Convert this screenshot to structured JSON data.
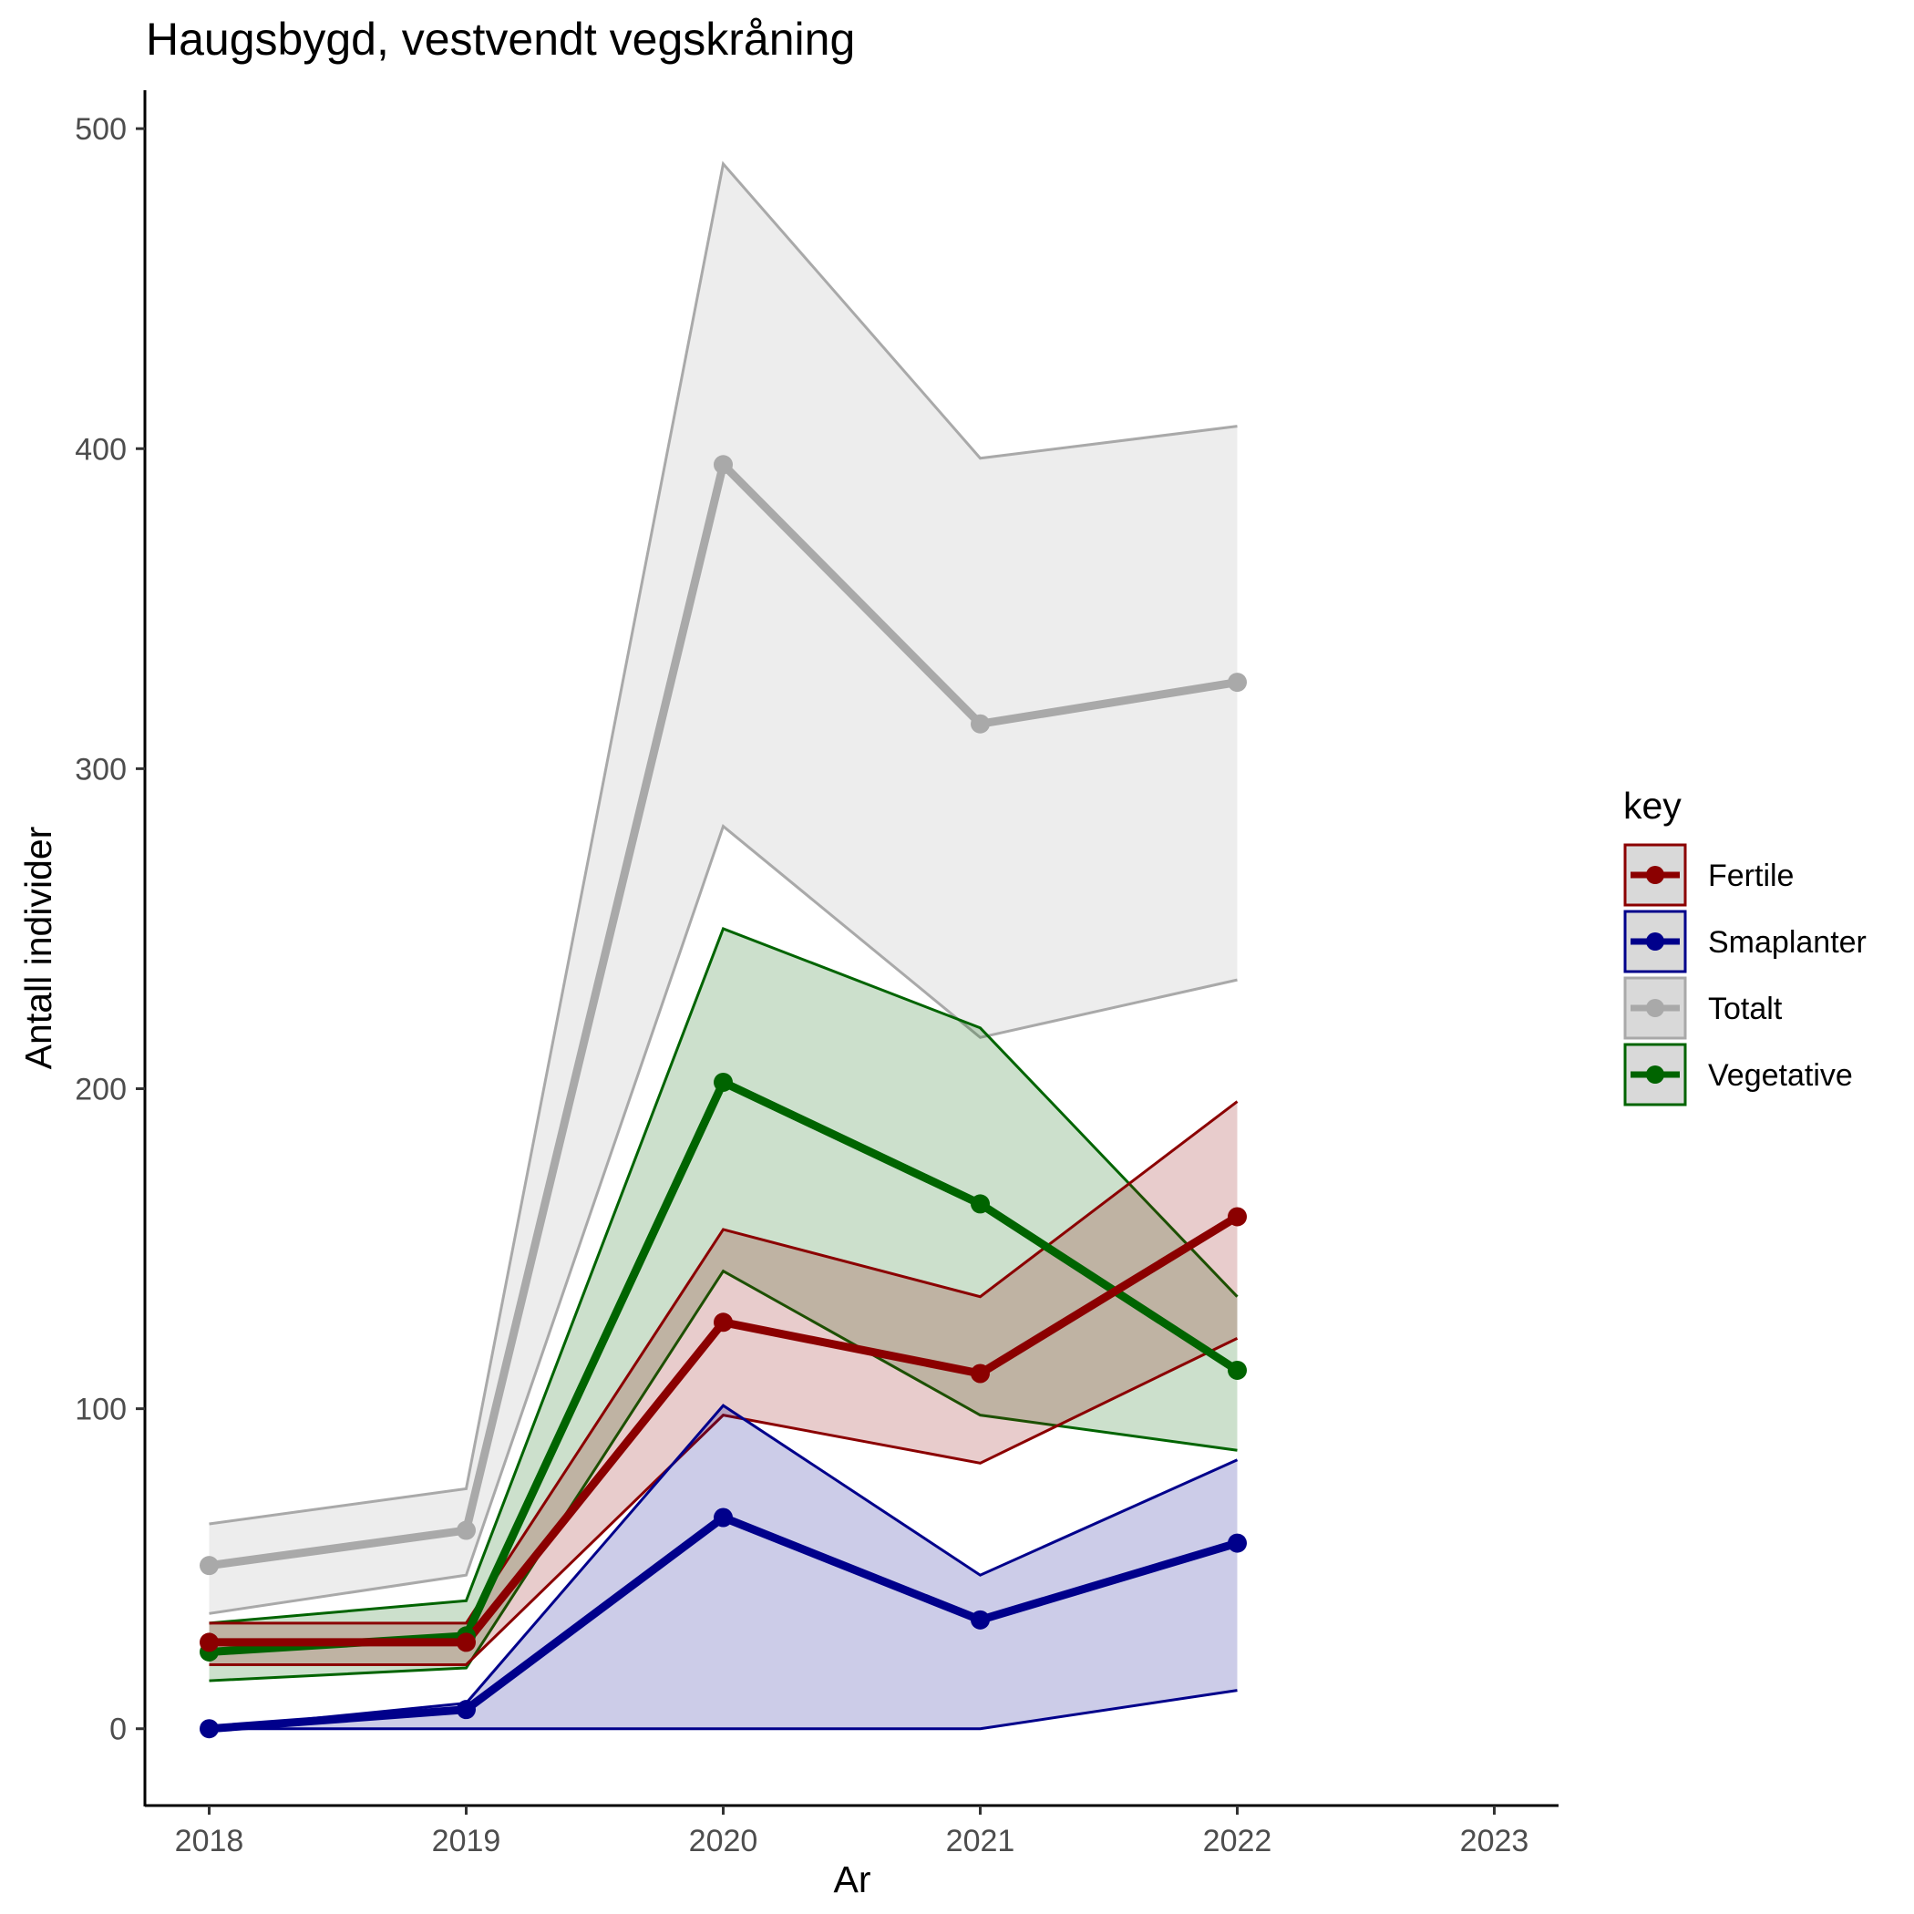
{
  "chart_data": {
    "type": "line",
    "title": "Haugsbygd, vestvendt vegskråning",
    "xlabel": "Ar",
    "ylabel": "Antall individer",
    "x": [
      2018,
      2019,
      2020,
      2021,
      2022
    ],
    "x_ticks": [
      "2018",
      "2019",
      "2020",
      "2021",
      "2022",
      "2023"
    ],
    "y_ticks": [
      "0",
      "100",
      "200",
      "300",
      "400",
      "500"
    ],
    "xlim": [
      2017.75,
      2023.25
    ],
    "ylim": [
      -24,
      512
    ],
    "grid": false,
    "legend": {
      "title": "key",
      "position": "right"
    },
    "series": [
      {
        "name": "Totalt",
        "color": "#a9a9a9",
        "fill": "#ededed",
        "values": [
          51,
          62,
          395,
          314,
          327
        ],
        "lower": [
          36,
          48,
          282,
          216,
          234
        ],
        "upper": [
          64,
          75,
          489,
          397,
          407
        ]
      },
      {
        "name": "Vegetative",
        "color": "#006400",
        "fill": "#006400",
        "values": [
          24,
          29,
          202,
          164,
          112
        ],
        "lower": [
          15,
          19,
          143,
          98,
          87
        ],
        "upper": [
          33,
          40,
          250,
          219,
          135
        ]
      },
      {
        "name": "Fertile",
        "color": "#8b0000",
        "fill": "#8b0000",
        "values": [
          27,
          27,
          127,
          111,
          160
        ],
        "lower": [
          20,
          20,
          98,
          83,
          122
        ],
        "upper": [
          33,
          33,
          156,
          135,
          196
        ]
      },
      {
        "name": "Smaplanter",
        "color": "#00008b",
        "fill": "#00008b",
        "values": [
          0,
          6,
          66,
          34,
          58
        ],
        "lower": [
          0,
          0,
          0,
          0,
          12
        ],
        "upper": [
          0,
          8,
          101,
          48,
          84
        ]
      }
    ],
    "legend_order": [
      "Fertile",
      "Smaplanter",
      "Totalt",
      "Vegetative"
    ]
  }
}
